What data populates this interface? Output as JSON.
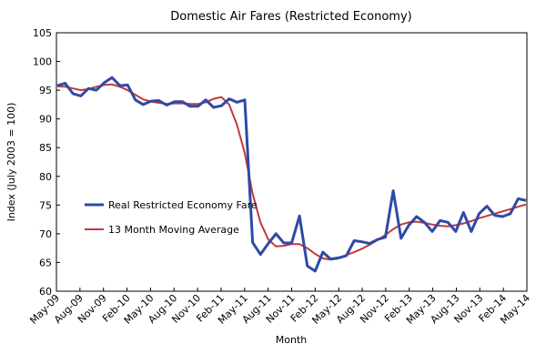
{
  "chart_data": {
    "type": "line",
    "title": "Domestic Air Fares (Restricted Economy)",
    "xlabel": "Month",
    "ylabel": "Index (July 2003 = 100)",
    "ylim": [
      60,
      105
    ],
    "yticks": [
      60,
      65,
      70,
      75,
      80,
      85,
      90,
      95,
      100,
      105
    ],
    "x_tick_labels": [
      "May-09",
      "Aug-09",
      "Nov-09",
      "Feb-10",
      "May-10",
      "Aug-10",
      "Nov-10",
      "Feb-11",
      "May-11",
      "Aug-11",
      "Nov-11",
      "Feb-12",
      "May-12",
      "Aug-12",
      "Nov-12",
      "Feb-13",
      "May-13",
      "Aug-13",
      "Nov-13",
      "Feb-14",
      "May-14"
    ],
    "grid": false,
    "legend_position": "lower-left",
    "x_points": 61,
    "series": [
      {
        "name": "Real Restricted Economy Fare",
        "color": "#2e4aa6",
        "values": [
          95.8,
          96.2,
          94.4,
          94.0,
          95.3,
          95.0,
          96.3,
          97.2,
          95.8,
          95.9,
          93.3,
          92.5,
          93.1,
          93.2,
          92.4,
          93.0,
          93.0,
          92.2,
          92.2,
          93.3,
          92.0,
          92.3,
          93.5,
          92.9,
          93.3,
          68.5,
          66.4,
          68.3,
          70.0,
          68.4,
          68.4,
          73.1,
          64.4,
          63.5,
          66.8,
          65.6,
          65.8,
          66.2,
          68.8,
          68.6,
          68.3,
          69.0,
          69.4,
          77.5,
          69.2,
          71.5,
          73.0,
          72.0,
          70.4,
          72.3,
          72.0,
          70.4,
          73.7,
          70.4,
          73.5,
          74.8,
          73.2,
          73.0,
          73.5,
          76.1,
          75.8
        ]
      },
      {
        "name": "13 Month Moving Average",
        "color": "#c0393b",
        "values": [
          95.7,
          95.6,
          95.3,
          95.0,
          95.2,
          95.6,
          95.9,
          96.0,
          95.6,
          95.0,
          94.2,
          93.4,
          93.0,
          92.8,
          92.6,
          92.7,
          92.7,
          92.6,
          92.6,
          92.9,
          93.5,
          93.8,
          92.5,
          89.0,
          84.0,
          77.0,
          72.0,
          69.0,
          67.8,
          67.9,
          68.2,
          68.2,
          67.5,
          66.5,
          65.7,
          65.5,
          65.7,
          66.3,
          66.8,
          67.4,
          68.1,
          68.9,
          69.8,
          70.8,
          71.6,
          72.0,
          72.1,
          71.9,
          71.6,
          71.4,
          71.3,
          71.5,
          71.8,
          72.2,
          72.7,
          73.1,
          73.5,
          73.9,
          74.3,
          74.7,
          75.1
        ]
      }
    ]
  }
}
